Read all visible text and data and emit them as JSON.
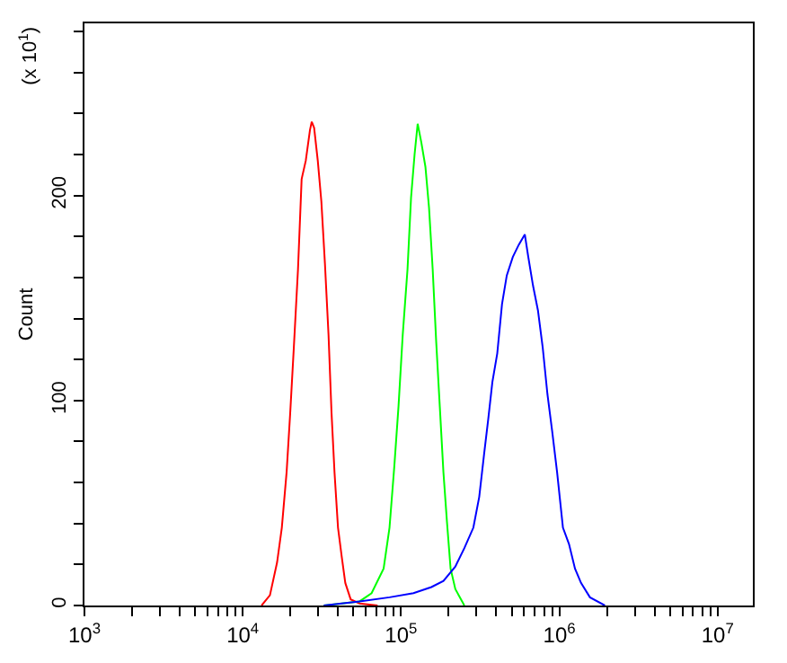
{
  "chart_data": {
    "type": "line",
    "ylabel": "Count",
    "annotations": [
      "(x 10$^{1}$)"
    ],
    "log": "x",
    "grid": false,
    "marker": "none",
    "line_style": "solid",
    "xlim": [
      1000,
      16700000
    ],
    "ylim": [
      0,
      284
    ],
    "xticks": [
      {
        "value": 1000,
        "label": "10$^{3}$"
      },
      {
        "value": 2000,
        "label": null
      },
      {
        "value": 3000,
        "label": null
      },
      {
        "value": 4000,
        "label": null
      },
      {
        "value": 5000,
        "label": null
      },
      {
        "value": 6000,
        "label": null
      },
      {
        "value": 7000,
        "label": null
      },
      {
        "value": 8000,
        "label": null
      },
      {
        "value": 9000,
        "label": null
      },
      {
        "value": 10000,
        "label": "10$^{4}$"
      },
      {
        "value": 20000,
        "label": null
      },
      {
        "value": 30000,
        "label": null
      },
      {
        "value": 40000,
        "label": null
      },
      {
        "value": 50000,
        "label": null
      },
      {
        "value": 60000,
        "label": null
      },
      {
        "value": 70000,
        "label": null
      },
      {
        "value": 80000,
        "label": null
      },
      {
        "value": 90000,
        "label": null
      },
      {
        "value": 100000,
        "label": "10$^{5}$"
      },
      {
        "value": 200000,
        "label": null
      },
      {
        "value": 300000,
        "label": null
      },
      {
        "value": 400000,
        "label": null
      },
      {
        "value": 500000,
        "label": null
      },
      {
        "value": 600000,
        "label": null
      },
      {
        "value": 700000,
        "label": null
      },
      {
        "value": 800000,
        "label": null
      },
      {
        "value": 900000,
        "label": null
      },
      {
        "value": 1000000,
        "label": "10$^{6}$"
      },
      {
        "value": 2000000,
        "label": null
      },
      {
        "value": 3000000,
        "label": null
      },
      {
        "value": 4000000,
        "label": null
      },
      {
        "value": 5000000,
        "label": null
      },
      {
        "value": 6000000,
        "label": null
      },
      {
        "value": 7000000,
        "label": null
      },
      {
        "value": 8000000,
        "label": null
      },
      {
        "value": 9000000,
        "label": null
      },
      {
        "value": 10000000,
        "label": "10$^{7}$"
      }
    ],
    "yticks": [
      0,
      {
        "value": 20,
        "label": null
      },
      {
        "value": 40,
        "label": null
      },
      {
        "value": 60,
        "label": null
      },
      {
        "value": 80,
        "label": null
      },
      100,
      {
        "value": 120,
        "label": null
      },
      {
        "value": 140,
        "label": null
      },
      {
        "value": 160,
        "label": null
      },
      {
        "value": 180,
        "label": null
      },
      200,
      {
        "value": 220,
        "label": null
      },
      {
        "value": 240,
        "label": null
      },
      {
        "value": 260,
        "label": null
      },
      {
        "value": 280,
        "label": null
      }
    ],
    "series": [
      {
        "color": "#ff0000",
        "x": [
          13150,
          14850,
          16480,
          17660,
          18930,
          19950,
          21030,
          22340,
          23550,
          25010,
          26600,
          27290,
          28250,
          29790,
          31390,
          33050,
          34830,
          36390,
          38000,
          39990,
          42170,
          44460,
          48080,
          54710,
          71120
        ],
        "values": [
          0,
          5,
          21,
          38,
          65,
          94,
          126,
          164,
          208,
          217,
          232,
          236,
          233,
          217,
          197,
          167,
          132,
          94,
          65,
          38,
          24,
          11,
          3,
          1,
          0
        ]
      },
      {
        "color": "#00ff00",
        "x": [
          32500,
          54710,
          65170,
          77620,
          84570,
          90700,
          96390,
          102500,
          109900,
          115700,
          121800,
          127400,
          134300,
          142600,
          150300,
          158500,
          166700,
          175800,
          185300,
          195000,
          205600,
          220300,
          251200
        ],
        "values": [
          0,
          2,
          6,
          18,
          38,
          68,
          97,
          132,
          164,
          199,
          220,
          235,
          226,
          214,
          194,
          164,
          129,
          97,
          65,
          41,
          18,
          8,
          0
        ]
      },
      {
        "color": "#0000ff",
        "x": [
          32500,
          54710,
          84570,
          119900,
          155600,
          185300,
          220300,
          251200,
          286400,
          311900,
          335000,
          355700,
          377600,
          405500,
          434500,
          465600,
          508200,
          554600,
          605300,
          636800,
          682300,
          732800,
          785200,
          841400,
          901600,
          968200,
          1054000,
          1151000,
          1256000,
          1371000,
          1561000,
          1941000
        ],
        "values": [
          0,
          2,
          4,
          6,
          9,
          12,
          19,
          28,
          38,
          53,
          74,
          91,
          109,
          123,
          147,
          161,
          170,
          176,
          181,
          170,
          156,
          144,
          126,
          103,
          85,
          65,
          38,
          30,
          18,
          11,
          4,
          0
        ]
      }
    ]
  }
}
